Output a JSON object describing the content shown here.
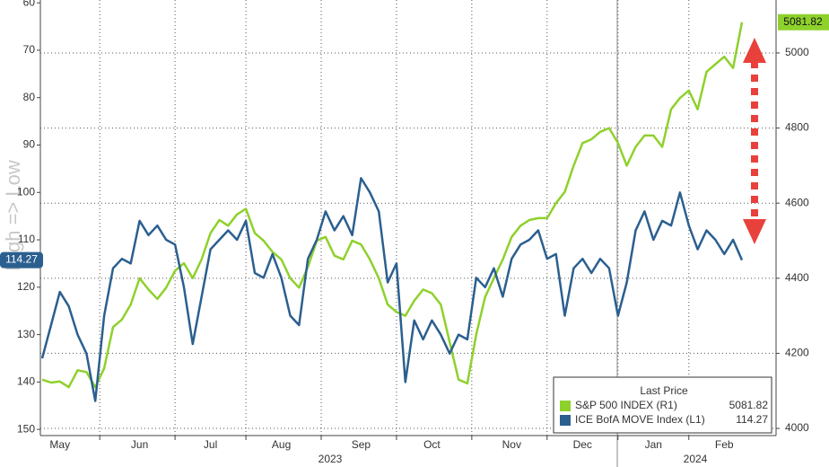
{
  "chart_data": {
    "type": "line",
    "y_label": "High => Low",
    "legend_title": "Last Price",
    "categories": [
      null,
      null,
      "May",
      null,
      null,
      null,
      null,
      null,
      null,
      null,
      null,
      "Jun",
      null,
      null,
      null,
      null,
      null,
      null,
      null,
      "Jul",
      null,
      null,
      null,
      null,
      null,
      null,
      null,
      "Aug",
      null,
      null,
      null,
      null,
      null,
      null,
      null,
      null,
      "Sep",
      null,
      null,
      null,
      null,
      null,
      null,
      null,
      "Oct",
      null,
      null,
      null,
      null,
      null,
      null,
      null,
      null,
      "Nov",
      null,
      null,
      null,
      null,
      null,
      null,
      null,
      "Dec",
      null,
      null,
      null,
      null,
      null,
      null,
      null,
      "Jan",
      null,
      null,
      null,
      null,
      null,
      null,
      null,
      "Feb",
      null,
      null
    ],
    "year_labels": [
      "2023",
      "2024"
    ],
    "series": [
      {
        "name": "S&P 500 INDEX (R1)",
        "color": "#8ed12c",
        "axis": "y2",
        "values": [
          4130,
          4122,
          4125,
          4110,
          4155,
          4150,
          4110,
          4160,
          4270,
          4290,
          4330,
          4400,
          4370,
          4345,
          4375,
          4420,
          4440,
          4400,
          4450,
          4520,
          4555,
          4540,
          4570,
          4585,
          4520,
          4500,
          4470,
          4450,
          4400,
          4375,
          4430,
          4500,
          4510,
          4460,
          4450,
          4500,
          4490,
          4450,
          4400,
          4330,
          4310,
          4300,
          4340,
          4370,
          4360,
          4330,
          4230,
          4130,
          4120,
          4250,
          4350,
          4400,
          4450,
          4510,
          4540,
          4555,
          4560,
          4560,
          4600,
          4630,
          4700,
          4760,
          4770,
          4790,
          4800,
          4760,
          4700,
          4750,
          4780,
          4780,
          4750,
          4850,
          4880,
          4900,
          4850,
          4950,
          4970,
          4990,
          4960,
          5081.82
        ]
      },
      {
        "name": "ICE BofA MOVE Index (L1)",
        "color": "#2b5f8f",
        "values": [
          135,
          128,
          121,
          124,
          130,
          134,
          144,
          126,
          116,
          114,
          115,
          106,
          109,
          107,
          110,
          111,
          120,
          132,
          122,
          112,
          110,
          108,
          110,
          106,
          117,
          118,
          113,
          118,
          126,
          128,
          114,
          110,
          104,
          108,
          105,
          109,
          97,
          100,
          104,
          119,
          115,
          140,
          127,
          131,
          127,
          130,
          134,
          130,
          131,
          118,
          120,
          116,
          122,
          114,
          111,
          110,
          108,
          114,
          113,
          126,
          116,
          114,
          117,
          114,
          116,
          126,
          119,
          108,
          104,
          110,
          106,
          107,
          100,
          107,
          112,
          108,
          110,
          113,
          110,
          114.27
        ]
      }
    ],
    "ylim": [
      59.4,
      151.3
    ],
    "y_inverted": true,
    "yticks": [
      60,
      70,
      80,
      90,
      100,
      110,
      120,
      130,
      140,
      150
    ],
    "y2lim": [
      3981,
      5141
    ],
    "y2ticks": [
      4000,
      4200,
      4400,
      4600,
      4800,
      5000
    ],
    "grid": true
  }
}
